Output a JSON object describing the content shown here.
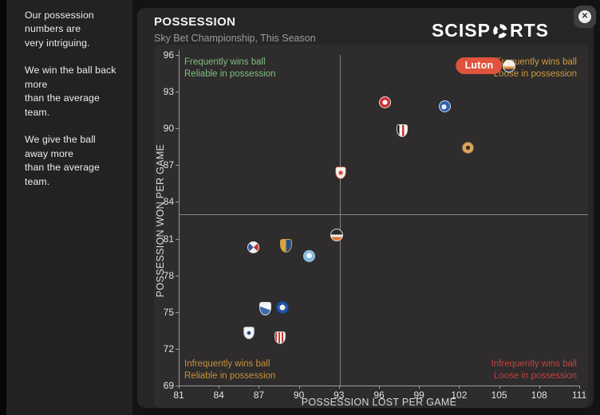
{
  "overlay": {
    "close_icon": "✕"
  },
  "sidebar": {
    "paragraphs": [
      "Our possession numbers are\nvery intriguing.",
      "We win the ball back more\nthan the average team.",
      "We give the ball away more\nthan the average team."
    ]
  },
  "header": {
    "title": "POSSESSION",
    "subtitle": "Sky Bet Championship, This Season",
    "brand": {
      "pre": "SCISP",
      "post": "RTS"
    }
  },
  "chart_data": {
    "type": "scatter",
    "title": "POSSESSION",
    "xlabel": "POSSESSION LOST PER GAME",
    "ylabel": "POSSESSION WON PER GAME",
    "xlim": [
      81,
      111
    ],
    "ylim": [
      69,
      96
    ],
    "x_ticks": [
      81,
      84,
      87,
      90,
      93,
      96,
      99,
      102,
      105,
      108,
      111
    ],
    "y_ticks": [
      96,
      93,
      90,
      87,
      84,
      81,
      78,
      75,
      72,
      69
    ],
    "grid": false,
    "average_lines": {
      "x": 93,
      "y": 83
    },
    "quadrants": {
      "top_left": {
        "text": "Frequently wins ball\nReliable in possession",
        "color": "#7fc07f"
      },
      "top_right": {
        "text": "Frequently wins ball\nLoose in possession",
        "color": "#cf9b3e"
      },
      "bottom_left": {
        "text": "Infrequently wins ball\nReliable in possession",
        "color": "#c8923c"
      },
      "bottom_right": {
        "text": "Infrequently wins ball\nLoose in possession",
        "color": "#c04340"
      }
    },
    "highlight_label": {
      "text": "Luton",
      "bg": "#e0533d",
      "text_color": "#ffffff"
    },
    "points": [
      {
        "id": "luton",
        "label": "Luton",
        "x": 105.7,
        "y": 95.1,
        "shape": "circle",
        "size": 16,
        "bg": "linear-gradient(180deg,#f4efe3 0% 52%,#e8923c 52% 76%,#323a56 76% 100%)",
        "border": "#e8e4d8"
      },
      {
        "id": "crest-red-roundel",
        "x": 96.4,
        "y": 92.1,
        "shape": "circle",
        "size": 15,
        "bg": "radial-gradient(circle,#f6f6f6 0% 34%,#cd2f2f 34% 100%)",
        "border": "#efdede"
      },
      {
        "id": "crest-blue-roundel",
        "x": 100.9,
        "y": 91.8,
        "shape": "circle",
        "size": 15,
        "bg": "radial-gradient(circle at 42% 55%,#e8eef6 0% 30%,#2d62ae 30% 100%)",
        "border": "#c9d8ec"
      },
      {
        "id": "crest-white-shield-red-stripe",
        "x": 97.7,
        "y": 89.8,
        "shape": "shield",
        "size": 14,
        "bg": "linear-gradient(90deg,#1d1d1d 0% 22%,#f7f7f7 22% 52%,#cf3434 52% 70%,#f7f7f7 70% 100%)",
        "border": "#dadada"
      },
      {
        "id": "crest-amber-black-roundel",
        "x": 102.6,
        "y": 88.4,
        "shape": "circle",
        "size": 15,
        "bg": "radial-gradient(circle,#3c3227 0% 30%,#d9a75e 30% 100%)",
        "border": "#8a6f45"
      },
      {
        "id": "crest-white-shield-red-border",
        "x": 93.1,
        "y": 86.4,
        "shape": "shield",
        "size": 14,
        "bg": "radial-gradient(circle,#d94a4a 0% 28%,#f6f2e9 28% 100%)",
        "border": "#c24040"
      },
      {
        "id": "crest-black-white-orange-roundel",
        "x": 92.8,
        "y": 81.3,
        "shape": "circle",
        "size": 16,
        "bg": "linear-gradient(180deg,#2c2c2c 0% 45%,#f1f1f1 45% 68%,#e0782e 68% 100%)",
        "border": "#d8d8d8"
      },
      {
        "id": "crest-blue-red-roundel",
        "x": 86.5,
        "y": 80.3,
        "shape": "circle",
        "size": 15,
        "bg": "conic-gradient(from 45deg,#c23636 0% 25%,#eef0f4 25% 50%,#33549c 50% 75%,#eef0f4 75% 100%)",
        "border": "#e6e6e6"
      },
      {
        "id": "crest-gold-blue-shield",
        "x": 89.0,
        "y": 80.4,
        "shape": "shield",
        "size": 15,
        "bg": "linear-gradient(90deg,#d7a43e 0% 50%,#2c4f86 50% 100%)",
        "border": "#c9a23e"
      },
      {
        "id": "crest-sky-blue-roundel",
        "x": 90.7,
        "y": 79.6,
        "shape": "circle",
        "size": 15,
        "bg": "radial-gradient(circle at 50% 45%,#f2f9ff 0% 35%,#7fb8dd 35% 100%)",
        "border": "#a8cde6"
      },
      {
        "id": "crest-blue-white-shield",
        "x": 87.4,
        "y": 75.3,
        "shape": "shield",
        "size": 15,
        "bg": "linear-gradient(200deg,#f3f5f9 0% 48%,#3e69ab 48% 100%)",
        "border": "#d4dce8"
      },
      {
        "id": "crest-blue-roundel-white-core",
        "x": 88.7,
        "y": 75.4,
        "shape": "circle",
        "size": 16,
        "bg": "radial-gradient(circle,#f6f6f6 0% 35%,#2456a6 35% 100%)",
        "border": "#173f85"
      },
      {
        "id": "crest-white-navy-shield",
        "x": 86.2,
        "y": 73.3,
        "shape": "shield",
        "size": 14,
        "bg": "radial-gradient(circle,#31497c 0% 25%,#f2f3f5 25% 100%)",
        "border": "#9aa8bc"
      },
      {
        "id": "crest-red-white-striped-shield",
        "x": 88.5,
        "y": 72.9,
        "shape": "shield",
        "size": 14,
        "bg": "repeating-linear-gradient(90deg,#d23a3a 0 2px,#f7f7f7 2px 4px)",
        "border": "#b9c2cc"
      }
    ]
  }
}
